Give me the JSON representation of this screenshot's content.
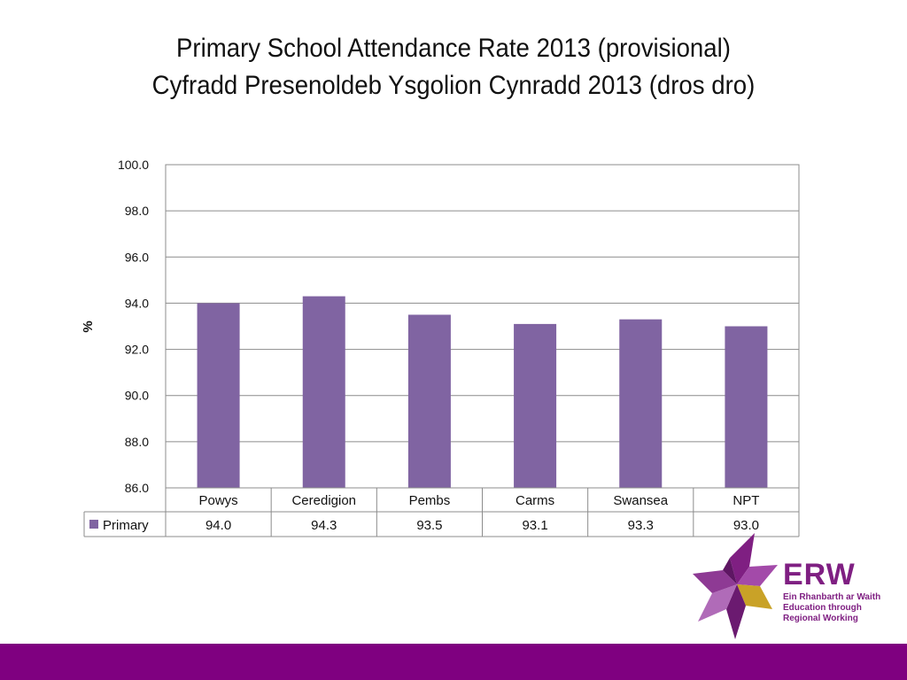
{
  "title": {
    "line1": "Primary School Attendance Rate 2013 (provisional)",
    "line2": "Cyfradd Presenoldeb Ysgolion Cynradd 2013 (dros dro)"
  },
  "chart_data": {
    "type": "bar",
    "categories": [
      "Powys",
      "Ceredigion",
      "Pembs",
      "Carms",
      "Swansea",
      "NPT"
    ],
    "series": [
      {
        "name": "Primary",
        "values": [
          94.0,
          94.3,
          93.5,
          93.1,
          93.3,
          93.0
        ],
        "color": "#8064a2"
      }
    ],
    "value_labels": [
      "94.0",
      "94.3",
      "93.5",
      "93.1",
      "93.3",
      "93.0"
    ],
    "ylabel": "%",
    "ylim": [
      86.0,
      100.0
    ],
    "yticks": [
      86.0,
      88.0,
      90.0,
      92.0,
      94.0,
      96.0,
      98.0,
      100.0
    ],
    "ytick_labels": [
      "86.0",
      "88.0",
      "90.0",
      "92.0",
      "94.0",
      "96.0",
      "98.0",
      "100.0"
    ],
    "grid": true,
    "legend": "data-table"
  },
  "logo": {
    "name": "ERW",
    "line1": "Ein Rhanbarth ar Waith",
    "line2": "Education through",
    "line3": "Regional Working",
    "colors": {
      "purple": "#7f1f82",
      "light_purple": "#b06bb8",
      "gold": "#c9a227"
    }
  },
  "footer": {
    "color": "#7f0080"
  }
}
